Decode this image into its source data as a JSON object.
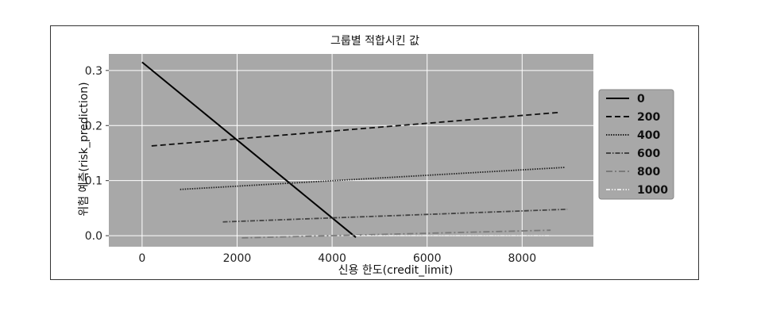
{
  "chart_data": {
    "type": "line",
    "title": "그룹별 적합시킨 값",
    "xlabel": "신용 한도(credit_limit)",
    "ylabel": "위험 예측(risk_prediction)",
    "xlim": [
      -700,
      9500
    ],
    "ylim": [
      -0.02,
      0.33
    ],
    "xticks": [
      0,
      2000,
      4000,
      6000,
      8000
    ],
    "yticks": [
      0.0,
      0.1,
      0.2,
      0.3
    ],
    "xtick_labels": [
      "0",
      "2000",
      "4000",
      "6000",
      "8000"
    ],
    "ytick_labels": [
      "0.0",
      "0.1",
      "0.2",
      "0.3"
    ],
    "grid": true,
    "plot_background": "#a8a8a8",
    "legend_position": "outside-right",
    "series": [
      {
        "name": "0",
        "x": [
          0,
          4500
        ],
        "y": [
          0.315,
          -0.003
        ],
        "color": "#000000",
        "dash": "solid"
      },
      {
        "name": "200",
        "x": [
          200,
          8800
        ],
        "y": [
          0.163,
          0.224
        ],
        "color": "#111111",
        "dash": "dashed"
      },
      {
        "name": "400",
        "x": [
          800,
          8900
        ],
        "y": [
          0.084,
          0.124
        ],
        "color": "#222222",
        "dash": "dotted"
      },
      {
        "name": "600",
        "x": [
          1700,
          8950
        ],
        "y": [
          0.025,
          0.048
        ],
        "color": "#444444",
        "dash": "dashdot"
      },
      {
        "name": "800",
        "x": [
          2100,
          8600
        ],
        "y": [
          -0.004,
          0.01
        ],
        "color": "#7a7a7a",
        "dash": "dashdot2"
      },
      {
        "name": "1000",
        "x": [
          4500,
          8600
        ],
        "y": [
          0.0,
          0.0
        ],
        "color": "#e8e8e8",
        "dash": "dashdotdot"
      }
    ]
  }
}
